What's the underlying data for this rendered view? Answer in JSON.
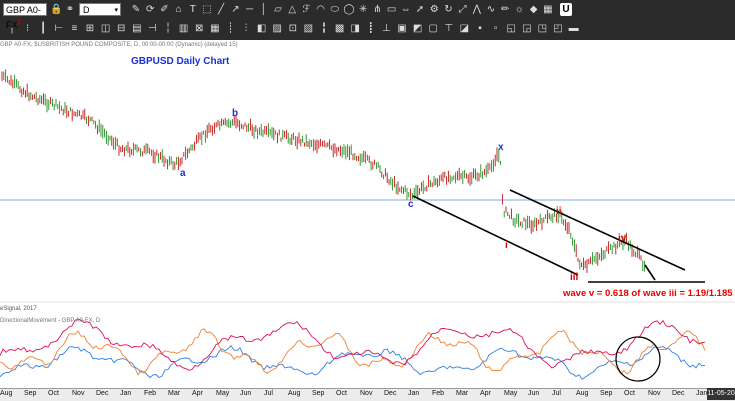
{
  "toolbar": {
    "symbol": "GBP A0-FX",
    "symbol_suffix": "X",
    "interval": "D",
    "row1_icons": [
      "lock-icon",
      "spinner-icon",
      "brush-icon",
      "tag-icon",
      "text-icon",
      "select-icon",
      "line-icon",
      "ray-icon",
      "hline-icon",
      "vline-icon",
      "channel-icon",
      "triangle-icon",
      "fib-icon",
      "arc-icon",
      "ellipse-icon",
      "circle-icon",
      "gann-icon",
      "pitchfork-icon",
      "box-icon",
      "measure-icon",
      "arrow-icon",
      "settings-icon",
      "cycle-icon",
      "regression-icon",
      "zigzag-icon",
      "wave-icon",
      "pen-icon",
      "sunburst-icon",
      "marker-icon",
      "grid-icon"
    ],
    "row2_icons": [
      "bar1-icon",
      "bar2-icon",
      "bar3-icon",
      "bar4-icon",
      "bar5-icon",
      "bar6-icon",
      "bar7-icon",
      "bar8-icon",
      "bar9-icon",
      "bar10-icon",
      "bar11-icon",
      "bar12-icon",
      "bar13-icon",
      "bar14-icon",
      "bar15-icon",
      "bar16-icon",
      "bar17-icon",
      "bar18-icon",
      "bar19-icon",
      "bar20-icon",
      "bar21-icon",
      "bar22-icon",
      "bar23-icon",
      "bar24-icon",
      "bar25-icon",
      "bar26-icon",
      "bar27-icon",
      "bar28-icon",
      "bar29-icon",
      "bar30-icon",
      "bar31-icon",
      "bar32-icon",
      "bar33-icon",
      "bar34-icon",
      "bar35-icon",
      "bar36-icon",
      "bar37-icon"
    ],
    "close_label": "U"
  },
  "chart": {
    "info_line": "GBP A0-FX, $USBRITISH POUND COMPOSITE, D, 00:00-00:00 (Dynamic) (delayed 15)",
    "title": "GBPUSD Daily Chart",
    "source": "eSignal, 2017",
    "indicator_label": "DirectionalMovement - GBP A0-FX, D",
    "annotation": "wave v = 0.618 of wave iii = 1.19/1.185",
    "wave_labels": {
      "a": "a",
      "b": "b",
      "c": "c",
      "x": "x",
      "i": "i",
      "ii": "ii",
      "iii": "iii",
      "iv": "iv"
    },
    "colors": {
      "price": "#2a2a2a",
      "up": "#1f8a1f",
      "down": "#c01010",
      "blue_label": "#1a2fd6",
      "red_label": "#dd0000",
      "dm_red": "#e0105a",
      "dm_orange": "#f08030",
      "dm_blue": "#3080e0"
    }
  },
  "xaxis": {
    "months": [
      "Aug",
      "Sep",
      "Oct",
      "Nov",
      "Dec",
      "Jan",
      "Feb",
      "Mar",
      "Apr",
      "May",
      "Jun",
      "Jul",
      "Aug",
      "Sep",
      "Oct",
      "Nov",
      "Dec",
      "Jan",
      "Feb",
      "Mar",
      "Apr",
      "May",
      "Jun",
      "Jul",
      "Aug",
      "Sep",
      "Oct",
      "Nov",
      "Dec",
      "Jan"
    ],
    "date_box": "11-05-20"
  }
}
